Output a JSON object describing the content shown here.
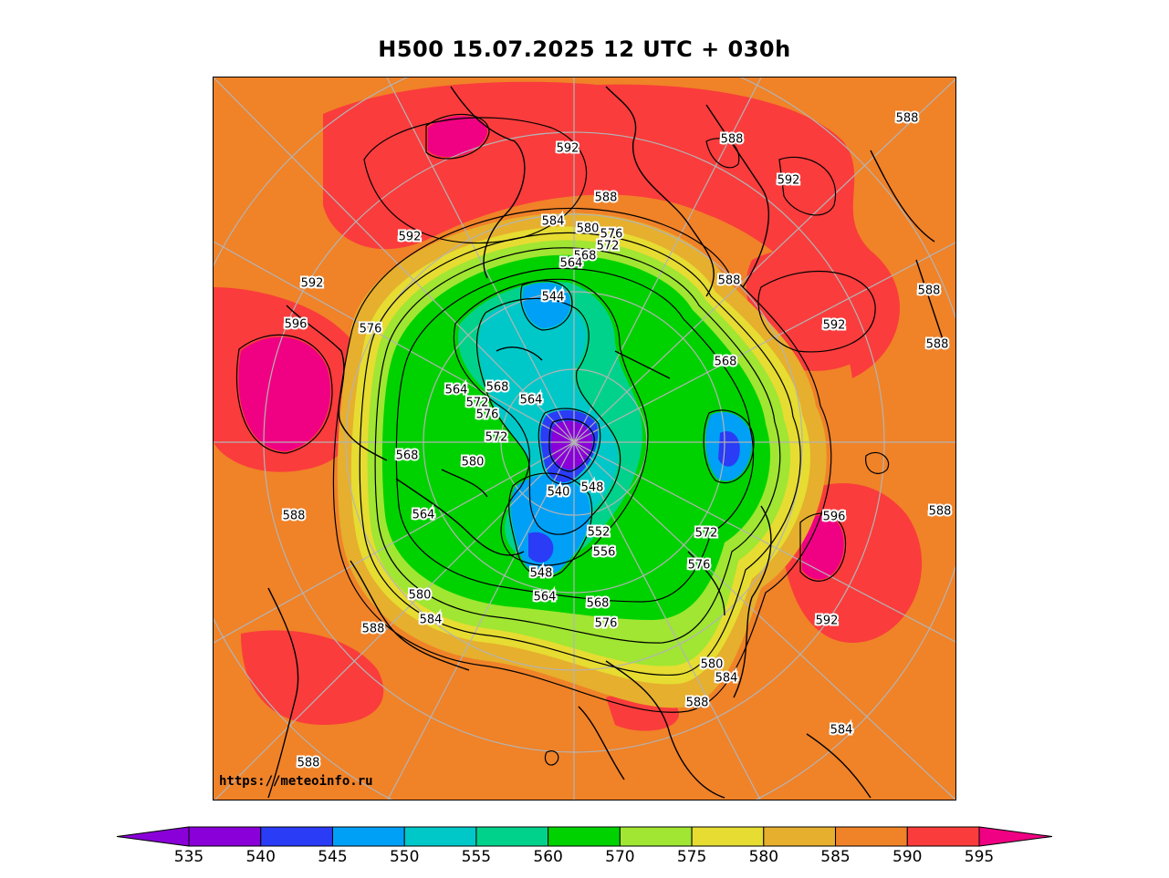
{
  "title": "H500  15.07.2025 12 UTC + 030h",
  "watermark": "https://meteoinfo.ru",
  "colors": {
    "c535": "#8a00d8",
    "c540": "#7d00e6",
    "c545": "#2a3cf6",
    "c550": "#00a0f6",
    "c555": "#00c8c8",
    "c560": "#00d28c",
    "c570": "#00d200",
    "c575": "#a0e632",
    "c580": "#e6dc32",
    "c585": "#e6af2d",
    "c590": "#f08228",
    "c595": "#fa3c3c",
    "c600": "#f00082"
  },
  "colorbar": {
    "ticks": [
      "535",
      "540",
      "545",
      "550",
      "555",
      "560",
      "570",
      "575",
      "580",
      "585",
      "590",
      "595"
    ],
    "segment_colors": [
      "#8a00d8",
      "#2a3cf6",
      "#00a0f6",
      "#00c8c8",
      "#00d28c",
      "#00d200",
      "#a0e632",
      "#e6dc32",
      "#e6af2d",
      "#f08228",
      "#fa3c3c"
    ],
    "low_extend_color": "#8a00d8",
    "high_extend_color": "#f00082"
  },
  "contour_labels": [
    "588",
    "588",
    "592",
    "588",
    "592",
    "584",
    "580",
    "576",
    "572",
    "568",
    "564",
    "592",
    "592",
    "588",
    "596",
    "576",
    "588",
    "544",
    "592",
    "588",
    "568",
    "564",
    "572",
    "564",
    "568",
    "576",
    "572",
    "580",
    "568",
    "564",
    "540",
    "548",
    "552",
    "556",
    "548",
    "564",
    "568",
    "576",
    "580",
    "584",
    "572",
    "576",
    "596",
    "592",
    "588",
    "580",
    "584",
    "588",
    "588",
    "584",
    "588",
    "592",
    "588",
    "592"
  ]
}
